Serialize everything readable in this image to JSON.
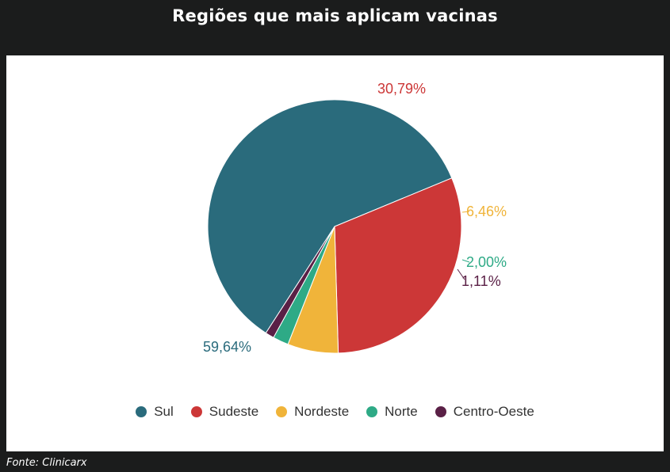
{
  "title": "Regiões que mais aplicam vacinas",
  "source": "Fonte: Clinicarx",
  "chart_data": {
    "type": "pie",
    "categories": [
      "Sul",
      "Sudeste",
      "Nordeste",
      "Norte",
      "Centro-Oeste"
    ],
    "values": [
      59.64,
      30.79,
      6.46,
      2.0,
      1.11
    ],
    "value_labels": [
      "59,64%",
      "30,79%",
      "6,46%",
      "2,00%",
      "1,11%"
    ],
    "colors": [
      "#2a6b7c",
      "#cc3737",
      "#f0b43a",
      "#2eaa86",
      "#5a2046"
    ],
    "legend_position": "bottom"
  }
}
